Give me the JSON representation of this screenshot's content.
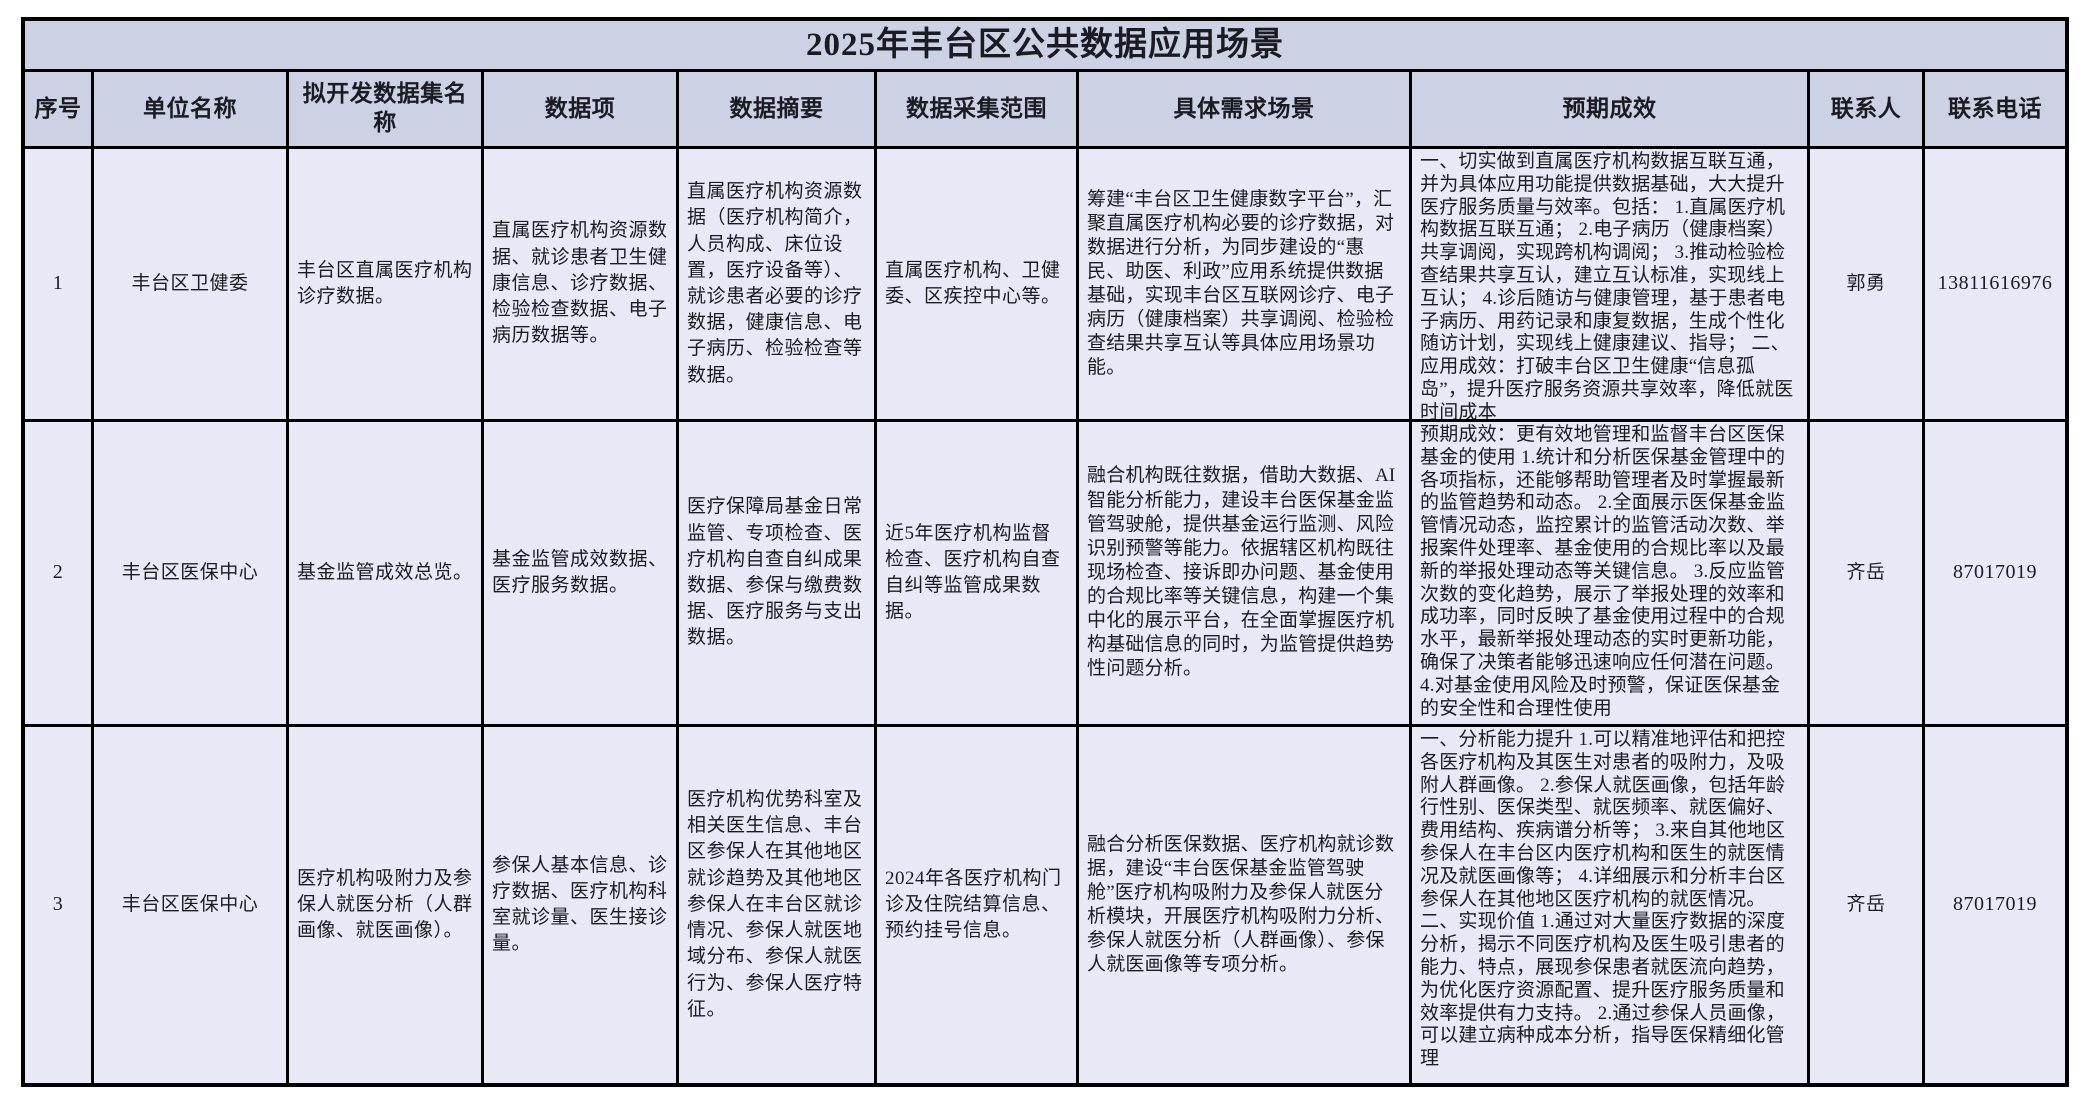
{
  "title": "2025年丰台区公共数据应用场景",
  "columns": [
    "序号",
    "单位名称",
    "拟开发数据集名称",
    "数据项",
    "数据摘要",
    "数据采集范围",
    "具体需求场景",
    "预期成效",
    "联系人",
    "联系电话"
  ],
  "colors": {
    "header_bg": "#ccd1e4",
    "body_bg": "#e7eaf6",
    "border": "#000000",
    "text": "#1b1b24"
  },
  "rows": [
    {
      "no": "1",
      "unit": "丰台区卫健委",
      "dataset": "丰台区直属医疗机构诊疗数据。",
      "items": "直属医疗机构资源数据、就诊患者卫生健康信息、诊疗数据、检验检查数据、电子病历数据等。",
      "summary": "直属医疗机构资源数据（医疗机构简介，人员构成、床位设置，医疗设备等）、就诊患者必要的诊疗数据，健康信息、电子病历、检验检查等数据。",
      "scope": "直属医疗机构、卫健委、区疾控中心等。",
      "scenario": "筹建“丰台区卫生健康数字平台”，汇聚直属医疗机构必要的诊疗数据，对数据进行分析，为同步建设的“惠民、助医、利政”应用系统提供数据基础，实现丰台区互联网诊疗、电子病历（健康档案）共享调阅、检验检查结果共享互认等具体应用场景功能。",
      "outcome": "一、切实做到直属医疗机构数据互联互通，并为具体应用功能提供数据基础，大大提升医疗服务质量与效率。包括： 1.直属医疗机构数据互联互通； 2.电子病历（健康档案）共享调阅，实现跨机构调阅； 3.推动检验检查结果共享互认，建立互认标准，实现线上互认； 4.诊后随访与健康管理，基于患者电子病历、用药记录和康复数据，生成个性化随访计划，实现线上健康建议、指导； 二、应用成效：打破丰台区卫生健康“信息孤岛”，提升医疗服务资源共享效率，降低就医时间成本",
      "contact": "郭勇",
      "phone": "13811616976"
    },
    {
      "no": "2",
      "unit": "丰台区医保中心",
      "dataset": "基金监管成效总览。",
      "items": "基金监管成效数据、医疗服务数据。",
      "summary": "医疗保障局基金日常监管、专项检查、医疗机构自查自纠成果数据、参保与缴费数据、医疗服务与支出数据。",
      "scope": "近5年医疗机构监督检查、医疗机构自查自纠等监管成果数据。",
      "scenario": "融合机构既往数据，借助大数据、AI智能分析能力，建设丰台医保基金监管驾驶舱，提供基金运行监测、风险识别预警等能力。依据辖区机构既往现场检查、接诉即办问题、基金使用的合规比率等关键信息，构建一个集中化的展示平台，在全面掌握医疗机构基础信息的同时，为监管提供趋势性问题分析。",
      "outcome": "预期成效：更有效地管理和监督丰台区医保基金的使用 1.统计和分析医保基金管理中的各项指标，还能够帮助管理者及时掌握最新的监管趋势和动态。 2.全面展示医保基金监管情况动态，监控累计的监管活动次数、举报案件处理率、基金使用的合规比率以及最新的举报处理动态等关键信息。 3.反应监管次数的变化趋势，展示了举报处理的效率和成功率，同时反映了基金使用过程中的合规水平，最新举报处理动态的实时更新功能，确保了决策者能够迅速响应任何潜在问题。 4.对基金使用风险及时预警，保证医保基金的安全性和合理性使用",
      "contact": "齐岳",
      "phone": "87017019"
    },
    {
      "no": "3",
      "unit": "丰台区医保中心",
      "dataset": "医疗机构吸附力及参保人就医分析（人群画像、就医画像）。",
      "items": "参保人基本信息、诊疗数据、医疗机构科室就诊量、医生接诊量。",
      "summary": "医疗机构优势科室及相关医生信息、丰台区参保人在其他地区就诊趋势及其他地区参保人在丰台区就诊情况、参保人就医地域分布、参保人就医行为、参保人医疗特征。",
      "scope": "2024年各医疗机构门诊及住院结算信息、预约挂号信息。",
      "scenario": "融合分析医保数据、医疗机构就诊数据，建设“丰台医保基金监管驾驶舱”医疗机构吸附力及参保人就医分析模块，开展医疗机构吸附力分析、参保人就医分析（人群画像）、参保人就医画像等专项分析。",
      "outcome": "一、分析能力提升 1.可以精准地评估和把控各医疗机构及其医生对患者的吸附力，及吸附人群画像。 2.参保人就医画像，包括年龄行性别、医保类型、就医频率、就医偏好、费用结构、疾病谱分析等； 3.来自其他地区参保人在丰台区内医疗机构和医生的就医情况及就医画像等； 4.详细展示和分析丰台区参保人在其他地区医疗机构的就医情况。 二、实现价值 1.通过对大量医疗数据的深度分析，揭示不同医疗机构及医生吸引患者的能力、特点，展现参保患者就医流向趋势，为优化医疗资源配置、提升医疗服务质量和效率提供有力支持。 2.通过参保人员画像，可以建立病种成本分析，指导医保精细化管理",
      "contact": "齐岳",
      "phone": "87017019"
    }
  ]
}
